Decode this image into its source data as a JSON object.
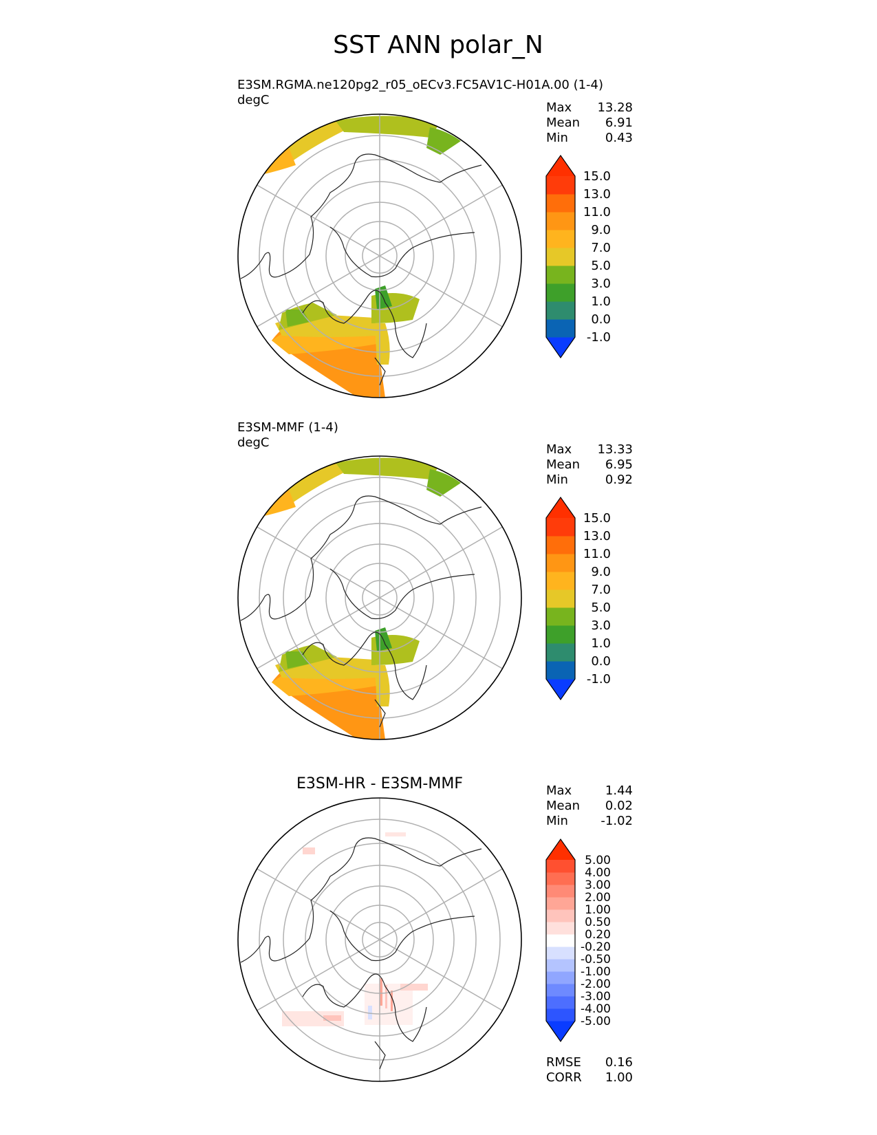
{
  "figure_title": "SST ANN polar_N",
  "colors": {
    "land_outline": "#222222",
    "grid": "#b0b0b0",
    "main_levels": [
      "#0a3cff",
      "#0a64b4",
      "#2e8c6e",
      "#3ea02a",
      "#78b41e",
      "#afc01e",
      "#e6c828",
      "#ffb41e",
      "#ff9614",
      "#ff6e0a",
      "#ff3c0a",
      "#ff3000"
    ],
    "diff_levels": [
      "#0a3cff",
      "#2d55ff",
      "#4d6eff",
      "#6e8aff",
      "#90a6ff",
      "#b4c4ff",
      "#d8e0ff",
      "#ffffff",
      "#ffe0dc",
      "#ffc4bc",
      "#ffa696",
      "#ff8a76",
      "#ff6e52",
      "#ff5030",
      "#ff3000"
    ]
  },
  "chart_data": [
    {
      "type": "heatmap",
      "projection": "north-polar-stereographic",
      "title": "E3SM.RGMA.ne120pg2_r05_oECv3.FC5AV1C-H01A.00 (1-4)",
      "units": "degC",
      "stats": {
        "max_label": "Max",
        "max": "13.28",
        "mean_label": "Mean",
        "mean": "6.91",
        "min_label": "Min",
        "min": "0.43"
      },
      "colorbar_levels": [
        -1,
        0,
        1,
        3,
        5,
        7,
        9,
        11,
        13,
        15
      ],
      "colorbar_tick_labels": [
        "-1.0",
        "0.0",
        "1.0",
        "3.0",
        "5.0",
        "7.0",
        "9.0",
        "11.0",
        "13.0",
        "15.0"
      ],
      "extend": "both"
    },
    {
      "type": "heatmap",
      "projection": "north-polar-stereographic",
      "title": "E3SM-MMF (1-4)",
      "units": "degC",
      "stats": {
        "max_label": "Max",
        "max": "13.33",
        "mean_label": "Mean",
        "mean": "6.95",
        "min_label": "Min",
        "min": "0.92"
      },
      "colorbar_levels": [
        -1,
        0,
        1,
        3,
        5,
        7,
        9,
        11,
        13,
        15
      ],
      "colorbar_tick_labels": [
        "-1.0",
        "0.0",
        "1.0",
        "3.0",
        "5.0",
        "7.0",
        "9.0",
        "11.0",
        "13.0",
        "15.0"
      ],
      "extend": "both"
    },
    {
      "type": "heatmap",
      "projection": "north-polar-stereographic",
      "title": "E3SM-HR - E3SM-MMF",
      "units": "",
      "stats": {
        "max_label": "Max",
        "max": "1.44",
        "mean_label": "Mean",
        "mean": "0.02",
        "min_label": "Min",
        "min": "-1.02"
      },
      "colorbar_levels": [
        -5,
        -4,
        -3,
        -2,
        -1,
        -0.5,
        -0.2,
        0.2,
        0.5,
        1,
        2,
        3,
        4,
        5
      ],
      "colorbar_tick_labels": [
        "-5.00",
        "-4.00",
        "-3.00",
        "-2.00",
        "-1.00",
        "-0.50",
        "-0.20",
        "0.20",
        "0.50",
        "1.00",
        "2.00",
        "3.00",
        "4.00",
        "5.00"
      ],
      "extend": "both",
      "metrics": {
        "rmse_label": "RMSE",
        "rmse": "0.16",
        "corr_label": "CORR",
        "corr": "1.00"
      }
    }
  ]
}
